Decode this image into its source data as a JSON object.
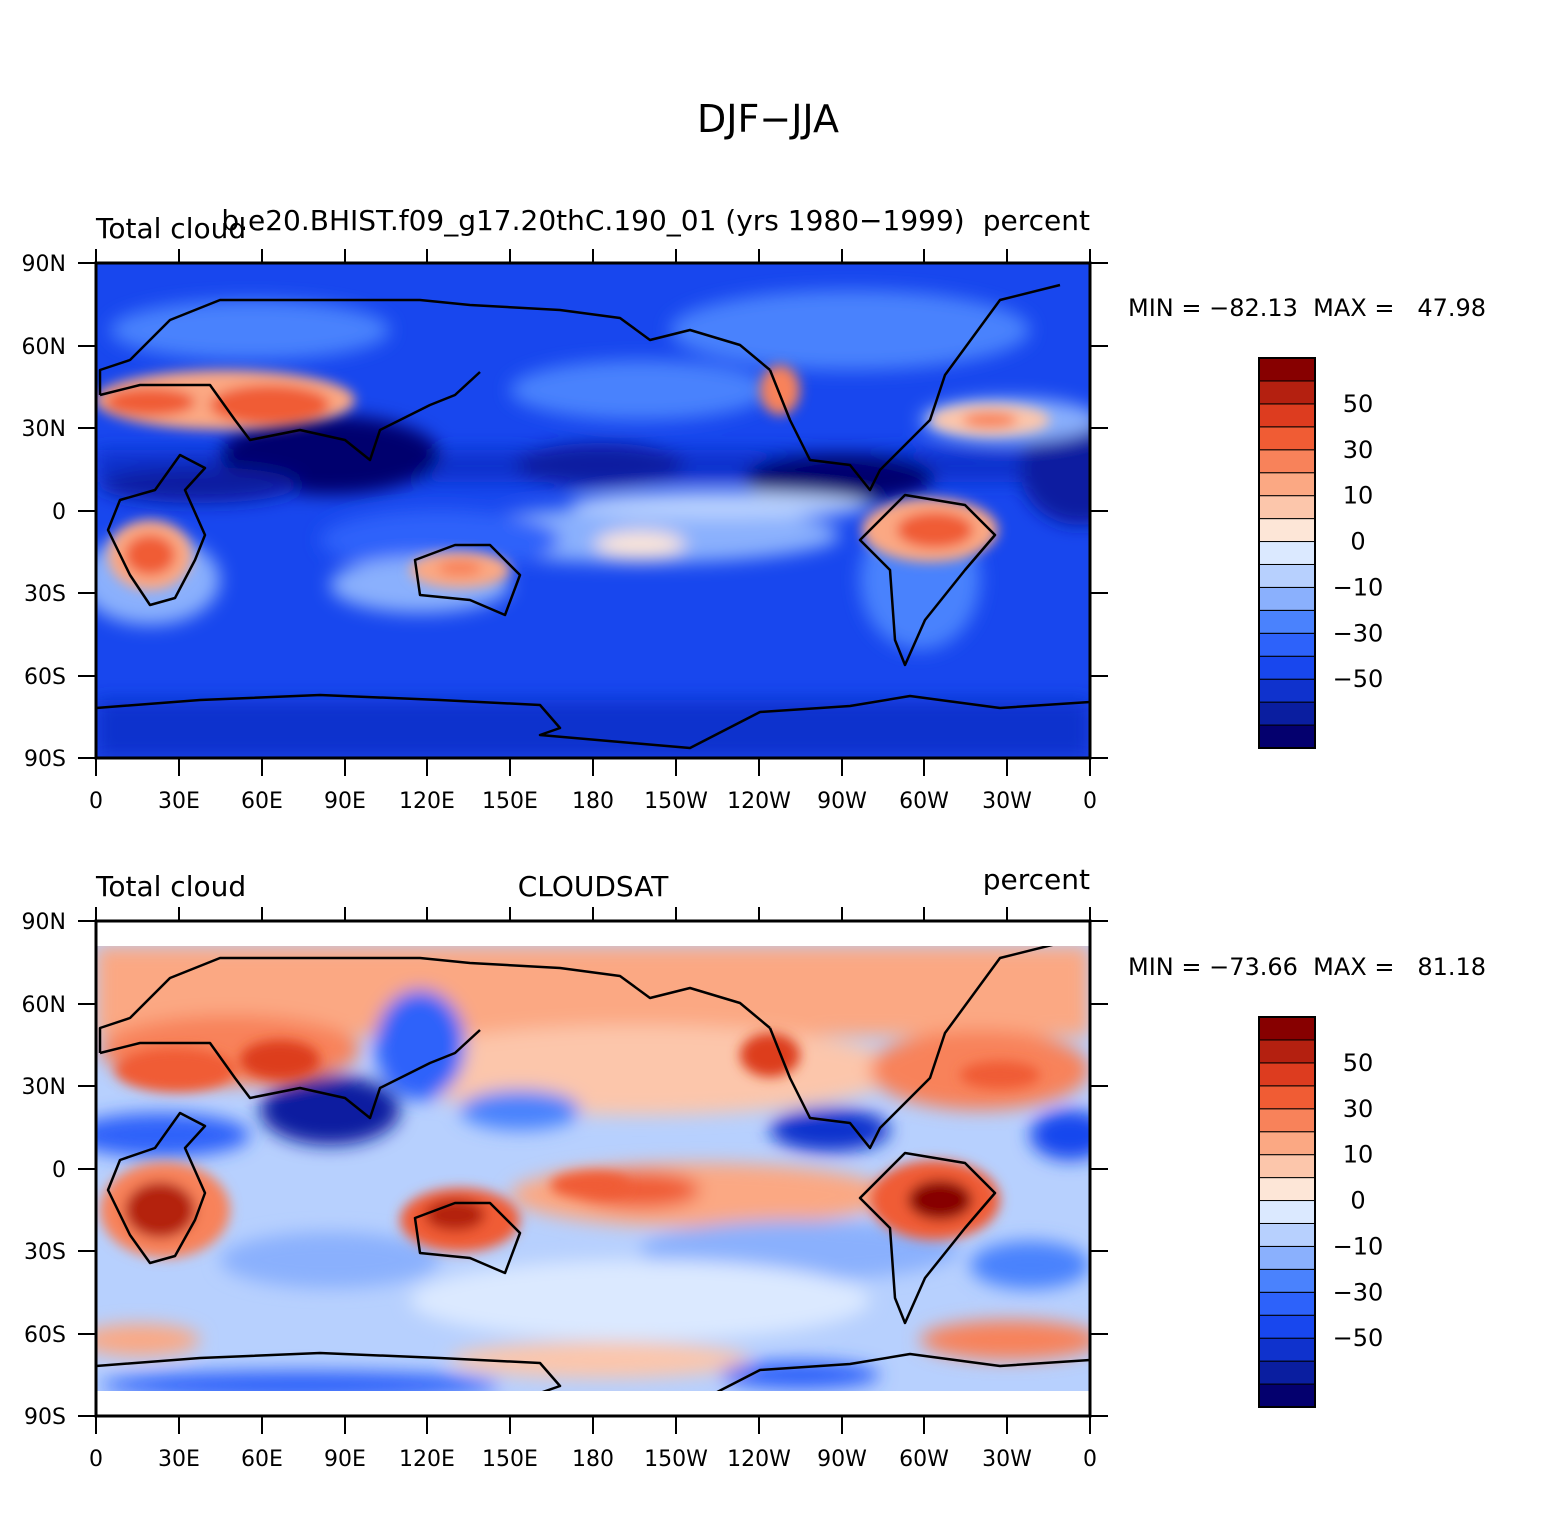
{
  "figure": {
    "title": "DJF−JJA"
  },
  "colorbar_levels": [
    "50",
    "30",
    "10",
    "0",
    "−10",
    "−30",
    "−50"
  ],
  "colorbar_colors": [
    "#04006e",
    "#0a1ea0",
    "#0f32cd",
    "#1847ee",
    "#2d62fa",
    "#4a82fd",
    "#8ab0fd",
    "#b7d0fe",
    "#dbe9ff",
    "#fde6d7",
    "#fcc6ab",
    "#fba883",
    "#f8825a",
    "#f05c34",
    "#dd3c1f",
    "#b42010",
    "#870000"
  ],
  "x_ticks": [
    "0",
    "30E",
    "60E",
    "90E",
    "120E",
    "150E",
    "180",
    "150W",
    "120W",
    "90W",
    "60W",
    "30W",
    "0"
  ],
  "y_ticks": [
    "90N",
    "60N",
    "30N",
    "0",
    "30S",
    "60S",
    "90S"
  ],
  "panels": [
    {
      "left_label": "Total cloud",
      "center_label": "b.e20.BHIST.f09_g17.20thC.190_01 (yrs 1980−1999)",
      "right_label": "percent",
      "min_max": "MIN = −82.13  MAX =   47.98"
    },
    {
      "left_label": "Total cloud",
      "center_label": "CLOUDSAT",
      "right_label": "percent",
      "min_max": "MIN = −73.66  MAX =   81.18"
    }
  ]
}
